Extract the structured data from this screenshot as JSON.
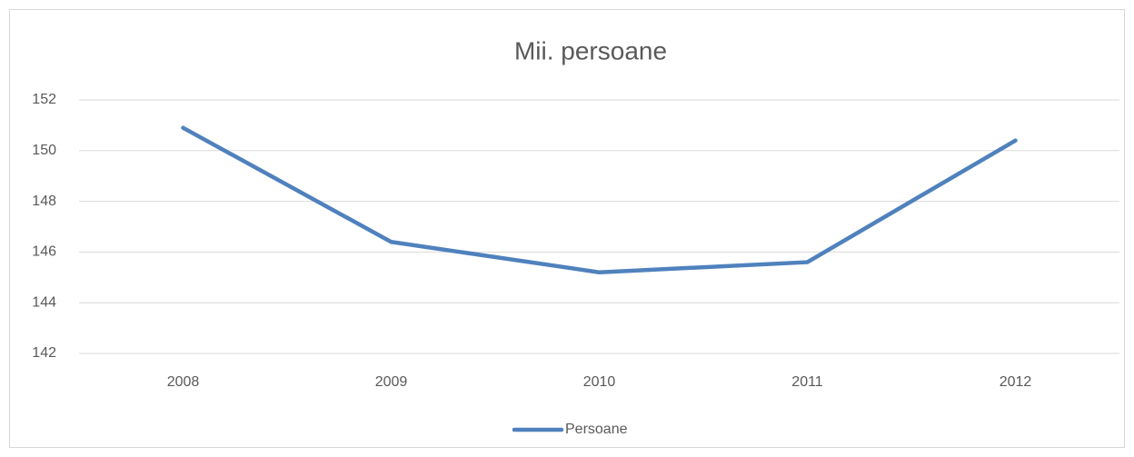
{
  "chart_data": {
    "type": "line",
    "title": "Mii. persoane",
    "categories": [
      "2008",
      "2009",
      "2010",
      "2011",
      "2012"
    ],
    "series": [
      {
        "name": "Persoane",
        "color": "#4f81bd",
        "values": [
          150.9,
          146.4,
          145.2,
          145.6,
          150.4
        ]
      }
    ],
    "ylim": [
      142,
      152
    ],
    "yticks": [
      142,
      144,
      146,
      148,
      150,
      152
    ],
    "grid": true,
    "legend": "bottom"
  }
}
